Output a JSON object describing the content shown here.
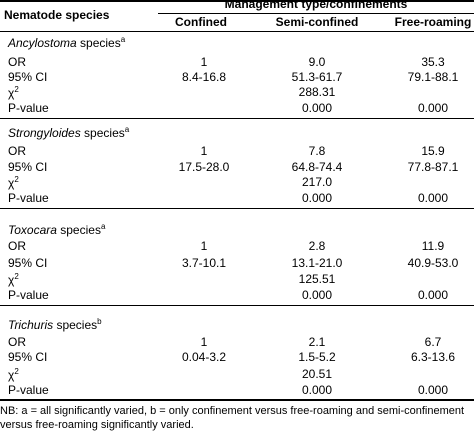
{
  "header": {
    "species_col": "Nematode species",
    "group": "Management type/confinements",
    "cols": [
      "Confined",
      "Semi-confined",
      "Free-roaming"
    ]
  },
  "blocks": [
    {
      "genus": "Ancylostoma",
      "suffix": " species",
      "sup": "a",
      "or_label": "OR",
      "or": [
        "1",
        "9.0",
        "35.3"
      ],
      "ci_label": "95% CI",
      "ci": [
        "8.4-16.8",
        "51.3-61.7",
        "79.1-88.1"
      ],
      "chi_label": "χ",
      "chi_sup": "2",
      "chi": "288.31",
      "p_label": "P-value",
      "p": [
        "0.000",
        "0.000"
      ]
    },
    {
      "genus": "Strongyloides",
      "suffix": " species",
      "sup": "a",
      "or_label": "OR",
      "or": [
        "1",
        "7.8",
        "15.9"
      ],
      "ci_label": "95% CI",
      "ci": [
        "17.5-28.0",
        "64.8-74.4",
        "77.8-87.1"
      ],
      "chi_label": "χ",
      "chi_sup": "2",
      "chi": "217.0",
      "p_label": "P-value",
      "p": [
        "0.000",
        "0.000"
      ]
    },
    {
      "genus": "Toxocara",
      "suffix": " species",
      "sup": "a",
      "or_label": "OR",
      "or": [
        "1",
        "2.8",
        "11.9"
      ],
      "ci_label": "95% CI",
      "ci": [
        "3.7-10.1",
        "13.1-21.0",
        "40.9-53.0"
      ],
      "chi_label": "χ",
      "chi_sup": "2",
      "chi": "125.51",
      "p_label": "P-value",
      "p": [
        "0.000",
        "0.000"
      ]
    },
    {
      "genus": "Trichuris",
      "suffix": " species",
      "sup": "b",
      "or_label": "OR",
      "or": [
        "1",
        "2.1",
        "6.7"
      ],
      "ci_label": "95% CI",
      "ci": [
        "0.04-3.2",
        "1.5-5.2",
        "6.3-13.6"
      ],
      "chi_label": "χ",
      "chi_sup": "2",
      "chi": "20.51",
      "p_label": "P-value",
      "p": [
        "0.000",
        "0.000"
      ]
    }
  ],
  "footnote": "NB: a = all significantly varied, b = only confinement versus free-roaming and semi-confinement versus free-roaming significantly varied."
}
